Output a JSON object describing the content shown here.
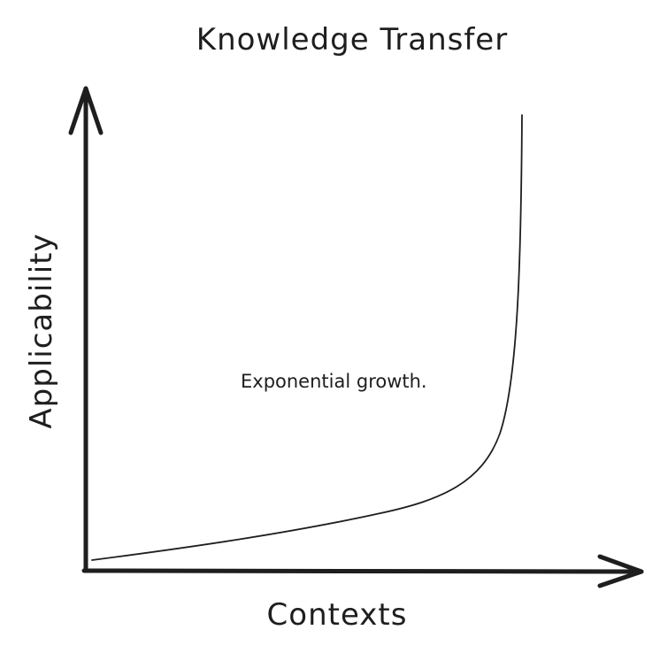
{
  "title": "Knowledge Transfer",
  "x_axis": {
    "label": "Contexts"
  },
  "y_axis": {
    "label": "Applicability"
  },
  "annotation": "Exponential growth.",
  "colors": {
    "ink": "#1e1e1e",
    "background": "#ffffff"
  }
}
